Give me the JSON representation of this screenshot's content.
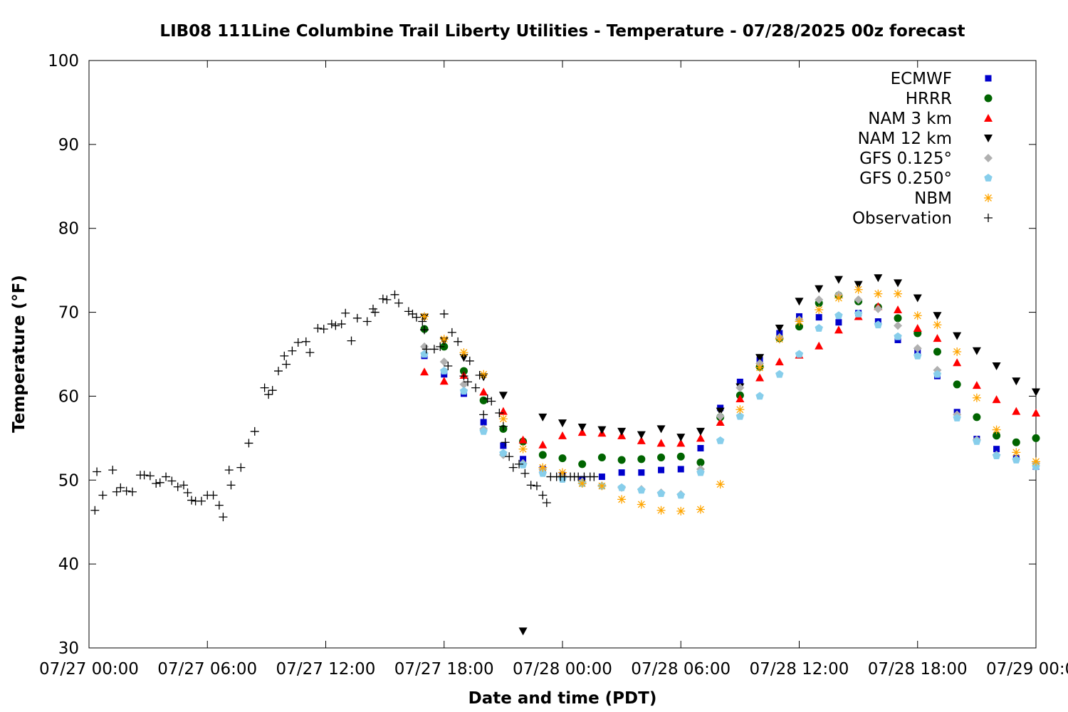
{
  "chart_data": {
    "type": "scatter",
    "title": "LIB08 111Line Columbine Trail Liberty Utilities - Temperature - 07/28/2025 00z forecast",
    "xlabel": "Date and time (PDT)",
    "ylabel": "Temperature (°F)",
    "x_unit": "hours since 07/27 00:00 PDT",
    "xlim": [
      0,
      48
    ],
    "ylim": [
      30,
      100
    ],
    "x_ticks": [
      {
        "value": 0,
        "label": "07/27 00:00"
      },
      {
        "value": 6,
        "label": "07/27 06:00"
      },
      {
        "value": 12,
        "label": "07/27 12:00"
      },
      {
        "value": 18,
        "label": "07/27 18:00"
      },
      {
        "value": 24,
        "label": "07/28 00:00"
      },
      {
        "value": 30,
        "label": "07/28 06:00"
      },
      {
        "value": 36,
        "label": "07/28 12:00"
      },
      {
        "value": 42,
        "label": "07/28 18:00"
      },
      {
        "value": 48,
        "label": "07/29 00:00"
      }
    ],
    "y_ticks": [
      30,
      40,
      50,
      60,
      70,
      80,
      90,
      100
    ],
    "grid": false,
    "legend_position": "top-right",
    "series": [
      {
        "name": "ECMWF",
        "marker": "square",
        "color": "#0000cc",
        "x": [
          17,
          18,
          19,
          20,
          21,
          22,
          23,
          24,
          25,
          26,
          27,
          28,
          29,
          30,
          31,
          32,
          33,
          34,
          35,
          36,
          37,
          38,
          39,
          40,
          41,
          42,
          43,
          44,
          45,
          46,
          47,
          48
        ],
        "y": [
          64.8,
          62.6,
          60.3,
          56.9,
          54.1,
          52.5,
          51.3,
          50.6,
          50.1,
          50.4,
          50.9,
          50.9,
          51.2,
          51.3,
          53.8,
          58.6,
          61.7,
          64.3,
          67.5,
          69.5,
          69.4,
          68.8,
          69.9,
          68.9,
          66.7,
          65.4,
          62.4,
          58.1,
          54.9,
          53.7,
          52.6,
          51.6
        ]
      },
      {
        "name": "HRRR",
        "marker": "circle",
        "color": "#006400",
        "x": [
          17,
          18,
          19,
          20,
          21,
          22,
          23,
          24,
          25,
          26,
          27,
          28,
          29,
          30,
          31,
          32,
          33,
          34,
          35,
          36,
          37,
          38,
          39,
          40,
          41,
          42,
          43,
          44,
          45,
          46,
          47,
          48
        ],
        "y": [
          68.0,
          65.9,
          63.0,
          59.5,
          56.1,
          54.6,
          53.0,
          52.6,
          51.9,
          52.7,
          52.4,
          52.5,
          52.7,
          52.8,
          52.1,
          57.5,
          60.1,
          63.5,
          66.9,
          68.3,
          71.1,
          72.0,
          71.3,
          70.6,
          69.3,
          67.5,
          65.3,
          61.4,
          57.5,
          55.3,
          54.5,
          55.0
        ]
      },
      {
        "name": "NAM 3 km",
        "marker": "triangle-up",
        "color": "#ff0000",
        "x": [
          17,
          18,
          19,
          20,
          21,
          22,
          23,
          24,
          25,
          26,
          27,
          28,
          29,
          30,
          31,
          32,
          33,
          34,
          35,
          36,
          37,
          38,
          39,
          40,
          41,
          42,
          43,
          44,
          45,
          46,
          47,
          48
        ],
        "y": [
          62.9,
          61.8,
          62.5,
          60.5,
          58.2,
          54.8,
          54.2,
          55.3,
          55.7,
          55.6,
          55.3,
          54.7,
          54.4,
          54.4,
          55.0,
          56.9,
          59.7,
          62.2,
          64.1,
          64.9,
          66.0,
          67.9,
          69.5,
          70.7,
          70.3,
          68.1,
          66.9,
          64.0,
          61.3,
          59.6,
          58.2,
          58.0
        ]
      },
      {
        "name": "NAM 12 km",
        "marker": "triangle-down",
        "color": "#000000",
        "x": [
          17,
          18,
          19,
          20,
          21,
          22,
          23,
          24,
          25,
          26,
          27,
          28,
          29,
          30,
          31,
          32,
          33,
          34,
          35,
          36,
          37,
          38,
          39,
          40,
          41,
          42,
          43,
          44,
          45,
          46,
          47,
          48
        ],
        "y": [
          69.4,
          66.6,
          64.6,
          62.3,
          60.1,
          32.0,
          57.5,
          56.8,
          56.3,
          56.0,
          55.8,
          55.4,
          56.1,
          55.1,
          55.8,
          58.2,
          61.1,
          64.6,
          68.1,
          71.3,
          72.8,
          73.9,
          73.3,
          74.1,
          73.5,
          71.7,
          69.6,
          67.2,
          65.4,
          63.6,
          61.8,
          60.5
        ]
      },
      {
        "name": "GFS 0.125°",
        "marker": "diamond",
        "color": "#b0b0b0",
        "x": [
          17,
          18,
          19,
          20,
          21,
          22,
          23,
          24,
          25,
          26,
          27,
          28,
          29,
          30,
          31,
          32,
          33,
          34,
          35,
          36,
          37,
          38,
          39,
          40,
          41,
          42,
          43,
          44,
          45,
          46,
          47,
          48
        ],
        "y": [
          65.9,
          64.1,
          61.4,
          56.1,
          53.0,
          52.0,
          51.3,
          50.5,
          49.8,
          49.3,
          49.1,
          48.9,
          48.5,
          48.3,
          51.3,
          57.6,
          61.0,
          63.9,
          67.0,
          69.1,
          71.5,
          72.1,
          71.5,
          70.4,
          68.4,
          65.7,
          63.1,
          57.8,
          54.8,
          53.0,
          52.5,
          52.0
        ]
      },
      {
        "name": "GFS 0.250°",
        "marker": "pentagon",
        "color": "#87ceeb",
        "x": [
          17,
          18,
          19,
          20,
          21,
          22,
          23,
          24,
          25,
          26,
          27,
          28,
          29,
          30,
          31,
          32,
          33,
          34,
          35,
          36,
          37,
          38,
          39,
          40,
          41,
          42,
          43,
          44,
          45,
          46,
          47,
          48
        ],
        "y": [
          65.0,
          63.0,
          60.6,
          55.8,
          53.2,
          51.8,
          50.8,
          50.1,
          49.6,
          49.3,
          49.1,
          48.8,
          48.4,
          48.2,
          50.9,
          54.7,
          57.6,
          60.0,
          62.6,
          65.0,
          68.1,
          69.6,
          69.8,
          68.5,
          67.1,
          64.8,
          62.6,
          57.4,
          54.6,
          52.9,
          52.4,
          51.6
        ]
      },
      {
        "name": "NBM",
        "marker": "asterisk",
        "color": "#ffa500",
        "x": [
          17,
          18,
          19,
          20,
          21,
          22,
          23,
          24,
          25,
          26,
          27,
          28,
          29,
          30,
          31,
          32,
          33,
          34,
          35,
          36,
          37,
          38,
          39,
          40,
          41,
          42,
          43,
          44,
          45,
          46,
          47,
          48
        ],
        "y": [
          69.5,
          66.8,
          65.2,
          62.6,
          57.3,
          53.7,
          51.5,
          50.9,
          49.6,
          49.3,
          47.7,
          47.1,
          46.4,
          46.3,
          46.5,
          49.5,
          58.4,
          63.4,
          66.8,
          68.9,
          70.3,
          71.7,
          72.7,
          72.2,
          72.2,
          69.6,
          68.5,
          65.3,
          59.8,
          56.0,
          53.3,
          52.2
        ]
      },
      {
        "name": "Observation",
        "marker": "plus",
        "color": "#000000",
        "x": [
          0.3,
          0.4,
          0.7,
          1.2,
          1.4,
          1.6,
          1.9,
          2.2,
          2.6,
          2.8,
          3.1,
          3.4,
          3.6,
          3.9,
          4.2,
          4.5,
          4.8,
          5.0,
          5.2,
          5.4,
          5.7,
          6.0,
          6.3,
          6.6,
          6.8,
          7.1,
          7.2,
          7.7,
          8.1,
          8.4,
          8.9,
          9.1,
          9.3,
          9.6,
          9.9,
          10.0,
          10.3,
          10.6,
          11.0,
          11.2,
          11.6,
          11.9,
          12.3,
          12.5,
          12.8,
          13.0,
          13.3,
          13.6,
          14.1,
          14.4,
          14.5,
          14.9,
          15.1,
          15.5,
          15.7,
          16.2,
          16.4,
          16.6,
          16.9,
          17.0,
          17.1,
          17.5,
          17.8,
          18.0,
          18.2,
          18.4,
          18.7,
          19.0,
          19.2,
          19.3,
          19.6,
          19.8,
          20.0,
          20.2,
          20.4,
          20.8,
          21.0,
          21.1,
          21.3,
          21.5,
          21.8,
          22.1,
          22.4,
          22.7,
          23.0,
          23.2,
          23.4,
          23.7,
          23.9,
          24.1,
          24.4,
          24.6,
          24.8,
          25.1,
          25.4,
          25.6
        ],
        "y": [
          46.4,
          51.0,
          48.2,
          51.2,
          48.6,
          49.1,
          48.7,
          48.6,
          50.6,
          50.6,
          50.5,
          49.6,
          49.7,
          50.4,
          49.9,
          49.2,
          49.4,
          48.5,
          47.6,
          47.5,
          47.5,
          48.2,
          48.2,
          47.0,
          45.6,
          51.2,
          49.4,
          51.5,
          54.4,
          55.8,
          61.0,
          60.2,
          60.7,
          63.0,
          64.8,
          63.8,
          65.4,
          66.4,
          66.5,
          65.2,
          68.1,
          68.0,
          68.6,
          68.4,
          68.6,
          69.9,
          66.6,
          69.3,
          68.9,
          70.4,
          70.0,
          71.6,
          71.5,
          72.1,
          71.1,
          70.1,
          69.8,
          69.4,
          68.9,
          67.9,
          65.6,
          65.6,
          65.9,
          69.8,
          63.6,
          67.6,
          66.5,
          62.4,
          61.7,
          64.2,
          61.0,
          62.5,
          57.8,
          59.7,
          59.4,
          58.0,
          56.4,
          54.5,
          52.8,
          51.5,
          51.9,
          50.8,
          49.4,
          49.3,
          48.2,
          47.3,
          50.4,
          50.4,
          50.4,
          50.4,
          50.4,
          50.4,
          50.4,
          50.4,
          50.4,
          50.4
        ]
      }
    ]
  }
}
